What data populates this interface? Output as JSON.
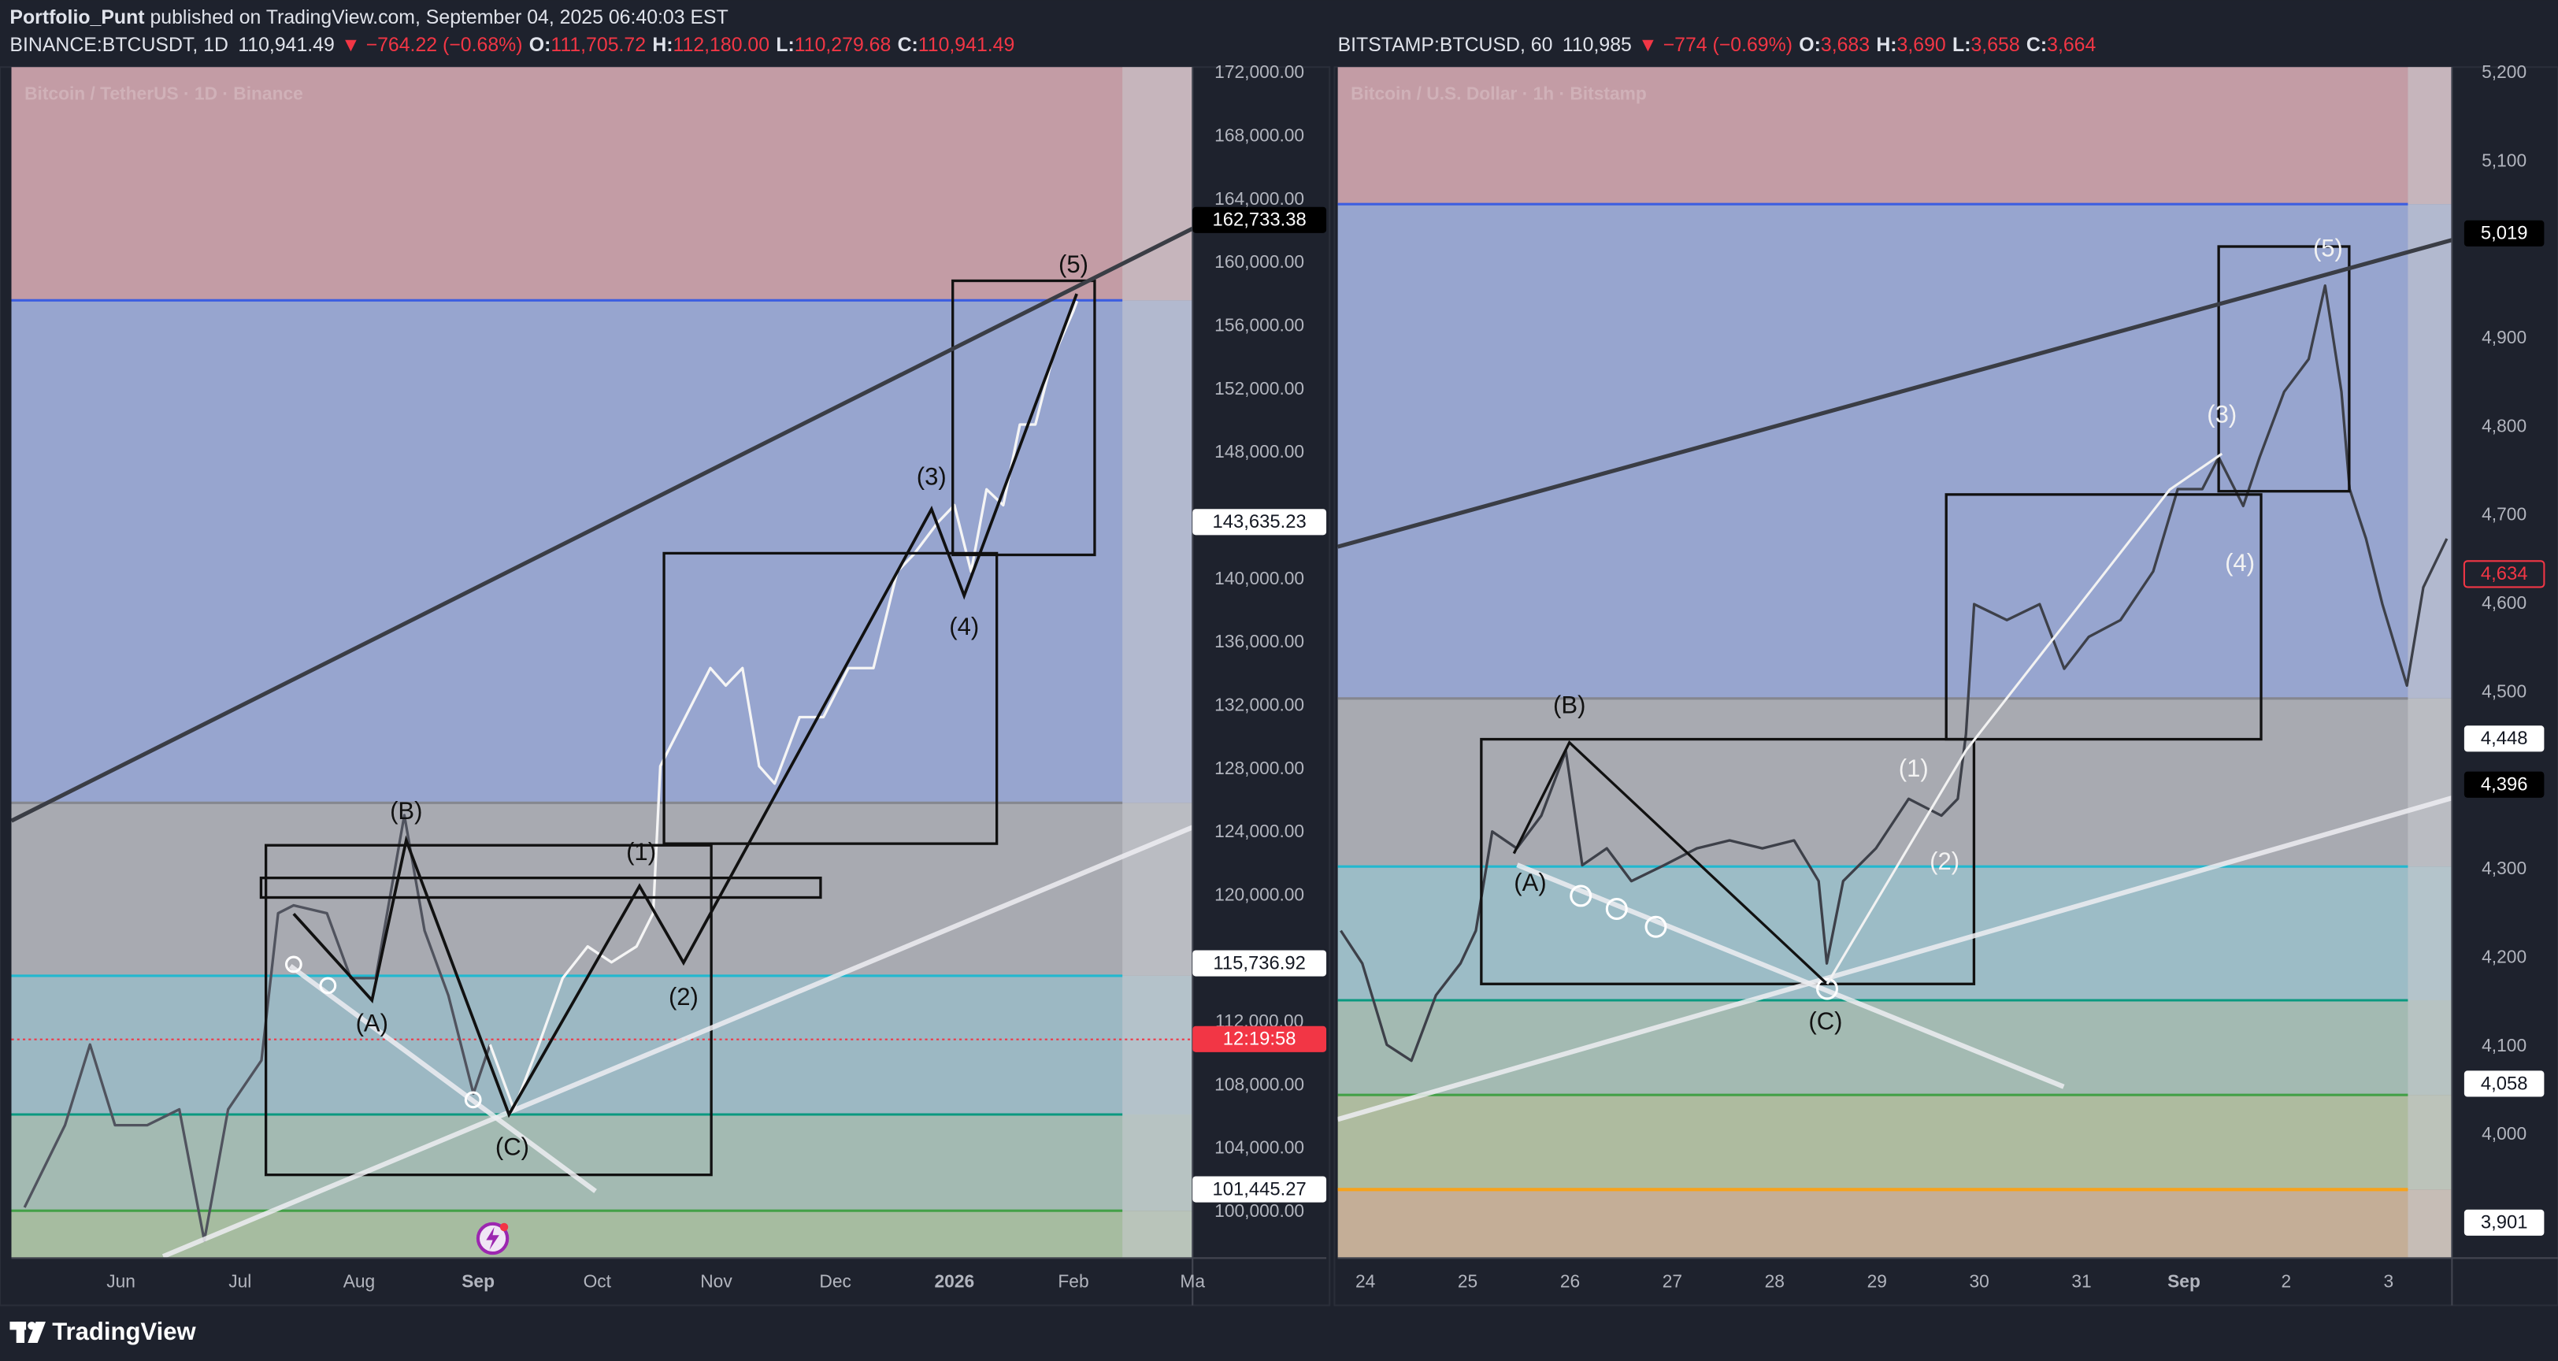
{
  "header": {
    "author": "Portfolio_Punt",
    "published": "published on TradingView.com, September 04, 2025 06:40:03 EST"
  },
  "footer": {
    "brand": "TradingView"
  },
  "chart_data": [
    {
      "type": "line",
      "title": "Bitcoin / TetherUS · 1D · Binance",
      "header": {
        "symbol": "BINANCE:BTCUSDT, 1D",
        "last": "110,941.49",
        "change": "▼ −764.22 (−0.68%)",
        "ohlc": [
          {
            "label": "O:",
            "value": "111,705.72"
          },
          {
            "label": "H:",
            "value": "112,180.00"
          },
          {
            "label": "L:",
            "value": "110,279.68"
          },
          {
            "label": "C:",
            "value": "110,941.49"
          }
        ]
      },
      "x": [
        4.19,
        4.53,
        4.74,
        4.95,
        5.22,
        5.49,
        5.7,
        5.9,
        6.18,
        6.32,
        6.45,
        6.73,
        6.93,
        7.14,
        7.38,
        7.55,
        7.75,
        7.96,
        8.1,
        8.3,
        8.51,
        8.71,
        8.92,
        9.12,
        9.33,
        9.47,
        9.53,
        9.74,
        9.95,
        10.08,
        10.22,
        10.36,
        10.49,
        10.7,
        10.9,
        11.11,
        11.32,
        11.52,
        11.66,
        11.86,
        12.0,
        12.14,
        12.27,
        12.41,
        12.55,
        12.68,
        12.82,
        13.0,
        13.03
      ],
      "series": [
        {
          "color": "#50535e",
          "values": [
            100300,
            105500,
            110600,
            105500,
            105500,
            106500,
            98200,
            106500,
            109600,
            118900,
            119400,
            118900,
            114800,
            114800,
            125100,
            117800,
            113700,
            107500,
            110600,
            null,
            null,
            null,
            null,
            null,
            null,
            null,
            null,
            null,
            null,
            null,
            null,
            null,
            null,
            null,
            null,
            null,
            null,
            null,
            null,
            null,
            null,
            null,
            null,
            null,
            null,
            null,
            null,
            null,
            null
          ]
        },
        {
          "color": "#f5f5f5",
          "values": [
            null,
            null,
            null,
            null,
            null,
            null,
            null,
            null,
            null,
            null,
            null,
            null,
            null,
            null,
            null,
            null,
            null,
            null,
            110600,
            106500,
            110600,
            114800,
            116800,
            115800,
            116800,
            118900,
            128200,
            131300,
            134400,
            133300,
            134400,
            128200,
            127100,
            131300,
            131300,
            134400,
            134400,
            140500,
            141600,
            143600,
            144700,
            140500,
            145700,
            144700,
            149800,
            149800,
            153900,
            157000,
            157600
          ]
        }
      ],
      "xlim": [
        4.08,
        14.0
      ],
      "xticks": [
        {
          "value": 5,
          "label": "Jun"
        },
        {
          "value": 6,
          "label": "Jul"
        },
        {
          "value": 7,
          "label": "Aug"
        },
        {
          "value": 8,
          "label": "Sep"
        },
        {
          "value": 9,
          "label": "Oct"
        },
        {
          "value": 10,
          "label": "Nov"
        },
        {
          "value": 11,
          "label": "Dec"
        },
        {
          "value": 12,
          "label": "2026"
        },
        {
          "value": 13,
          "label": "Feb"
        },
        {
          "value": 14,
          "label": "Ma"
        }
      ],
      "ylim": [
        97100,
        172400
      ],
      "yticks": [
        {
          "value": 172000,
          "label": "172,000.00"
        },
        {
          "value": 168000,
          "label": "168,000.00"
        },
        {
          "value": 164000,
          "label": "164,000.00"
        },
        {
          "value": 160000,
          "label": "160,000.00"
        },
        {
          "value": 156000,
          "label": "156,000.00"
        },
        {
          "value": 152000,
          "label": "152,000.00"
        },
        {
          "value": 148000,
          "label": "148,000.00"
        },
        {
          "value": 140000,
          "label": "140,000.00"
        },
        {
          "value": 136000,
          "label": "136,000.00"
        },
        {
          "value": 132000,
          "label": "132,000.00"
        },
        {
          "value": 128000,
          "label": "128,000.00"
        },
        {
          "value": 124000,
          "label": "124,000.00"
        },
        {
          "value": 120000,
          "label": "120,000.00"
        },
        {
          "value": 112000,
          "label": "112,000.00"
        },
        {
          "value": 108000,
          "label": "108,000.00"
        },
        {
          "value": 104000,
          "label": "104,000.00"
        },
        {
          "value": 100000,
          "label": "100,000.00"
        }
      ],
      "grid": false,
      "price_labels": [
        {
          "value": 162733.38,
          "label": "162,733.38",
          "bg": "#000000",
          "fg": "#ffffff"
        },
        {
          "value": 143635.23,
          "label": "143,635.23",
          "bg": "#ffffff",
          "fg": "#131722"
        },
        {
          "value": 115736.92,
          "label": "115,736.92",
          "bg": "#ffffff",
          "fg": "#131722"
        },
        {
          "value": 110941.49,
          "label": "12:19:58",
          "bg": "#f23645",
          "fg": "#ffffff"
        },
        {
          "value": 101445.27,
          "label": "101,445.27",
          "bg": "#ffffff",
          "fg": "#131722"
        }
      ],
      "wave_labels": [
        "(A)",
        "(B)",
        "(C)",
        "(1)",
        "(2)",
        "(3)",
        "(4)",
        "(5)"
      ]
    },
    {
      "type": "line",
      "title": "Bitcoin / U.S. Dollar · 1h · Bitstamp",
      "header": {
        "symbol": "BITSTAMP:BTCUSD, 60",
        "last": "110,985",
        "change": "▼ −774 (−0.69%)",
        "ohlc": [
          {
            "label": "O:",
            "value": "3,683"
          },
          {
            "label": "H:",
            "value": "3,690"
          },
          {
            "label": "L:",
            "value": "3,658"
          },
          {
            "label": "C:",
            "value": "3,664"
          }
        ]
      },
      "x": [
        23.76,
        23.97,
        24.21,
        24.45,
        24.69,
        24.93,
        25.08,
        25.24,
        25.48,
        25.72,
        25.96,
        26.12,
        26.36,
        26.6,
        26.92,
        27.24,
        27.56,
        27.88,
        28.19,
        28.43,
        28.51,
        28.67,
        28.99,
        29.31,
        29.63,
        29.79,
        29.87,
        29.95,
        30.27,
        30.59,
        30.83,
        31.07,
        31.38,
        31.7,
        31.94,
        32.18,
        32.34,
        32.58,
        32.74,
        32.98,
        33.22,
        33.38,
        33.54,
        33.62,
        33.78,
        33.94,
        34.18,
        34.34,
        34.57
      ],
      "series": [
        {
          "color": "#3d4049",
          "values": [
            4231,
            4194,
            4102,
            4084,
            4158,
            4194,
            4231,
            4343,
            4324,
            4361,
            4434,
            4305,
            4324,
            4287,
            4305,
            4324,
            4333,
            4324,
            4333,
            4287,
            4194,
            4287,
            4324,
            4380,
            4361,
            4380,
            4453,
            4600,
            4582,
            4600,
            4527,
            4563,
            4582,
            4637,
            4730,
            4730,
            4766,
            4711,
            4766,
            4840,
            4877,
            4960,
            4840,
            4730,
            4674,
            4600,
            4508,
            4619,
            4674
          ]
        }
      ],
      "xlim": [
        23.73,
        34.62
      ],
      "xticks": [
        24,
        25,
        26,
        27,
        28,
        29,
        30,
        31,
        {
          "value": 32,
          "label": "Sep"
        },
        {
          "value": 33,
          "label": "2"
        },
        {
          "value": 34,
          "label": "3"
        }
      ],
      "ylim": [
        3861,
        5207
      ],
      "yticks": [
        {
          "value": 5200,
          "label": "5,200"
        },
        {
          "value": 5100,
          "label": "5,100"
        },
        {
          "value": 4900,
          "label": "4,900"
        },
        {
          "value": 4800,
          "label": "4,800"
        },
        {
          "value": 4700,
          "label": "4,700"
        },
        {
          "value": 4600,
          "label": "4,600"
        },
        {
          "value": 4500,
          "label": "4,500"
        },
        {
          "value": 4300,
          "label": "4,300"
        },
        {
          "value": 4200,
          "label": "4,200"
        },
        {
          "value": 4100,
          "label": "4,100"
        },
        {
          "value": 4000,
          "label": "4,000"
        }
      ],
      "grid": false,
      "price_labels": [
        {
          "value": 5019,
          "label": "5,019",
          "bg": "#000000",
          "fg": "#ffffff"
        },
        {
          "value": 4634,
          "label": "4,634",
          "bg": "#1e222d",
          "fg": "#f23645"
        },
        {
          "value": 4448,
          "label": "4,448",
          "bg": "#ffffff",
          "fg": "#131722"
        },
        {
          "value": 4396,
          "label": "4,396",
          "bg": "#000000",
          "fg": "#ffffff"
        },
        {
          "value": 4058,
          "label": "4,058",
          "bg": "#ffffff",
          "fg": "#131722"
        },
        {
          "value": 3901,
          "label": "3,901",
          "bg": "#ffffff",
          "fg": "#131722"
        }
      ],
      "wave_labels": [
        "(A)",
        "(B)",
        "(C)",
        "(1)",
        "(2)",
        "(3)",
        "(4)",
        "(5)"
      ]
    }
  ]
}
